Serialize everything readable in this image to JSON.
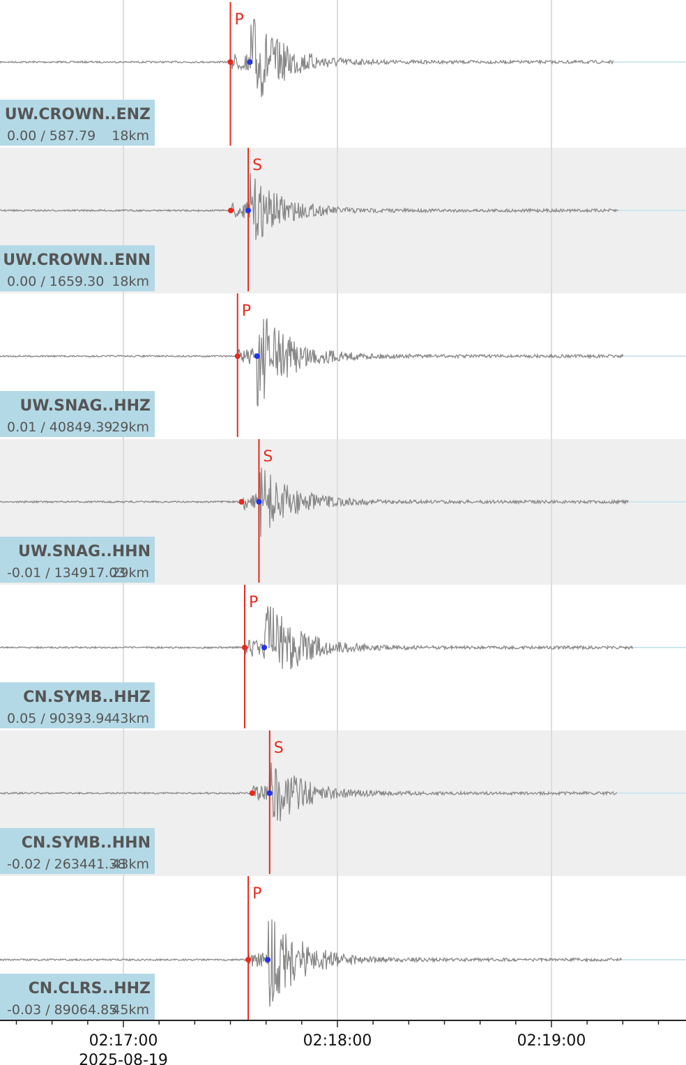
{
  "chart_data": {
    "type": "line",
    "x_ticks": [
      "02:17:00",
      "02:18:00",
      "02:19:00"
    ],
    "date_label": "2025-08-19",
    "grid": true,
    "colors": {
      "trace": "#888888",
      "pick_line": "#e8291c",
      "pick_dot_red": "#e8291c",
      "pick_dot_blue": "#2233ee",
      "label_box": "#b4d9e6",
      "alt_band": "#efefef"
    },
    "traces": [
      {
        "name": "UW.CROWN..ENZ",
        "info": "0.00 / 587.79",
        "dist": "18km",
        "phase": "P",
        "pick_time": "02:17:30",
        "shaded": false
      },
      {
        "name": "UW.CROWN..ENN",
        "info": "0.00 / 1659.30",
        "dist": "18km",
        "phase": "S",
        "pick_time": "02:17:35",
        "shaded": true
      },
      {
        "name": "UW.SNAG..HHZ",
        "info": "0.01 / 40849.39",
        "dist": "29km",
        "phase": "P",
        "pick_time": "02:17:32",
        "shaded": false
      },
      {
        "name": "UW.SNAG..HHN",
        "info": "-0.01 / 134917.03",
        "dist": "29km",
        "phase": "S",
        "pick_time": "02:17:38",
        "shaded": true
      },
      {
        "name": "CN.SYMB..HHZ",
        "info": "0.05 / 90393.94",
        "dist": "43km",
        "phase": "P",
        "pick_time": "02:17:34",
        "shaded": false
      },
      {
        "name": "CN.SYMB..HHN",
        "info": "-0.02 / 263441.38",
        "dist": "43km",
        "phase": "S",
        "pick_time": "02:17:41",
        "shaded": true
      },
      {
        "name": "CN.CLRS..HHZ",
        "info": "-0.03 / 89064.85",
        "dist": "45km",
        "phase": "P",
        "pick_time": "02:17:35",
        "shaded": false
      }
    ]
  }
}
